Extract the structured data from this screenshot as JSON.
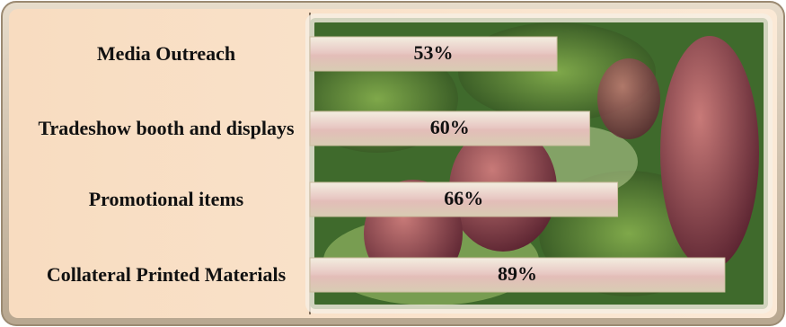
{
  "chart_data": {
    "type": "hbar",
    "categories": [
      "Media Outreach",
      "Tradeshow booth and displays",
      "Promotional items",
      "Collateral Printed Materials"
    ],
    "values": [
      53,
      60,
      66,
      89
    ],
    "value_labels": [
      "53%",
      "60%",
      "66%",
      "89%"
    ],
    "xlim": [
      0,
      100
    ]
  }
}
